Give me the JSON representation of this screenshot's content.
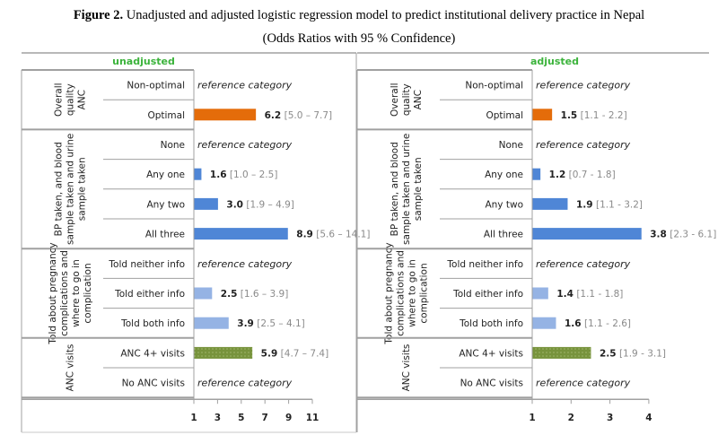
{
  "figure": {
    "label": "Figure 2.",
    "caption": "Unadjusted and adjusted logistic regression model to predict institutional delivery practice in Nepal",
    "subcaption": "(Odds Ratios with 95 % Confidence)"
  },
  "colors": {
    "orange": "#e46c0a",
    "blue": "#4f86d6",
    "light_blue": "#95b3e4",
    "green": "#77933c",
    "panel_title": "#3bb33b"
  },
  "chart_data": [
    {
      "type": "bar",
      "orientation": "horizontal",
      "title": "unadjusted",
      "xlim": [
        1,
        11
      ],
      "xticks": [
        "1",
        "3",
        "5",
        "7",
        "9",
        "11"
      ],
      "xtick_values": [
        1,
        3,
        5,
        7,
        9,
        11
      ],
      "groups": [
        {
          "label": "Overall quality ANC",
          "rows": [
            {
              "category": "Non-optimal",
              "reference": "reference category"
            },
            {
              "category": "Optimal",
              "value": 6.2,
              "value_label": "6.2",
              "ci_label": "[5.0 – 7.7]",
              "color": "orange"
            }
          ]
        },
        {
          "label": "BP taken, and blood sample taken and urine sample taken",
          "rows": [
            {
              "category": "None",
              "reference": "reference category"
            },
            {
              "category": "Any one",
              "value": 1.6,
              "value_label": "1.6",
              "ci_label": "[1.0 – 2.5]",
              "color": "blue"
            },
            {
              "category": "Any two",
              "value": 3.0,
              "value_label": "3.0",
              "ci_label": "[1.9 – 4.9]",
              "color": "blue"
            },
            {
              "category": "All three",
              "value": 8.9,
              "value_label": "8.9",
              "ci_label": "[5.6 – 14.1]",
              "color": "blue"
            }
          ]
        },
        {
          "label": "Told about pregnancy complications and where to go in complication",
          "rows": [
            {
              "category": "Told neither info",
              "reference": "reference category"
            },
            {
              "category": "Told either info",
              "value": 2.5,
              "value_label": "2.5",
              "ci_label": "[1.6 – 3.9]",
              "color": "light_blue"
            },
            {
              "category": "Told both info",
              "value": 3.9,
              "value_label": "3.9",
              "ci_label": "[2.5 – 4.1]",
              "color": "light_blue"
            }
          ]
        },
        {
          "label": "ANC visits",
          "rows": [
            {
              "category": "ANC 4+ visits",
              "value": 5.9,
              "value_label": "5.9",
              "ci_label": "[4.7 – 7.4]",
              "color": "green"
            },
            {
              "category": "No ANC visits",
              "reference": "reference category"
            }
          ]
        }
      ]
    },
    {
      "type": "bar",
      "orientation": "horizontal",
      "title": "adjusted",
      "xlim": [
        1,
        4
      ],
      "xticks": [
        "1",
        "2",
        "3",
        "4"
      ],
      "xtick_values": [
        1,
        2,
        3,
        4
      ],
      "groups": [
        {
          "label": "Overall quality ANC",
          "rows": [
            {
              "category": "Non-optimal",
              "reference": "reference category"
            },
            {
              "category": "Optimal",
              "value": 1.5,
              "value_label": "1.5",
              "ci_label": "[1.1 - 2.2]",
              "color": "orange"
            }
          ]
        },
        {
          "label": "BP taken, and blood sample taken and urine sample taken",
          "rows": [
            {
              "category": "None",
              "reference": "reference category"
            },
            {
              "category": "Any one",
              "value": 1.2,
              "value_label": "1.2",
              "ci_label": "[0.7 - 1.8]",
              "color": "blue"
            },
            {
              "category": "Any two",
              "value": 1.9,
              "value_label": "1.9",
              "ci_label": "[1.1 - 3.2]",
              "color": "blue"
            },
            {
              "category": "All three",
              "value": 3.8,
              "value_label": "3.8",
              "ci_label": "[2.3 - 6.1]",
              "color": "blue"
            }
          ]
        },
        {
          "label": "Told about pregnancy complications and where to go in complication",
          "rows": [
            {
              "category": "Told neither info",
              "reference": "reference category"
            },
            {
              "category": "Told either info",
              "value": 1.4,
              "value_label": "1.4",
              "ci_label": "[1.1 - 1.8]",
              "color": "light_blue"
            },
            {
              "category": "Told both info",
              "value": 1.6,
              "value_label": "1.6",
              "ci_label": "[1.1 - 2.6]",
              "color": "light_blue"
            }
          ]
        },
        {
          "label": "ANC visits",
          "rows": [
            {
              "category": "ANC 4+ visits",
              "value": 2.5,
              "value_label": "2.5",
              "ci_label": "[1.9 - 3.1]",
              "color": "green"
            },
            {
              "category": "No ANC visits",
              "reference": "reference category"
            }
          ]
        }
      ]
    }
  ]
}
